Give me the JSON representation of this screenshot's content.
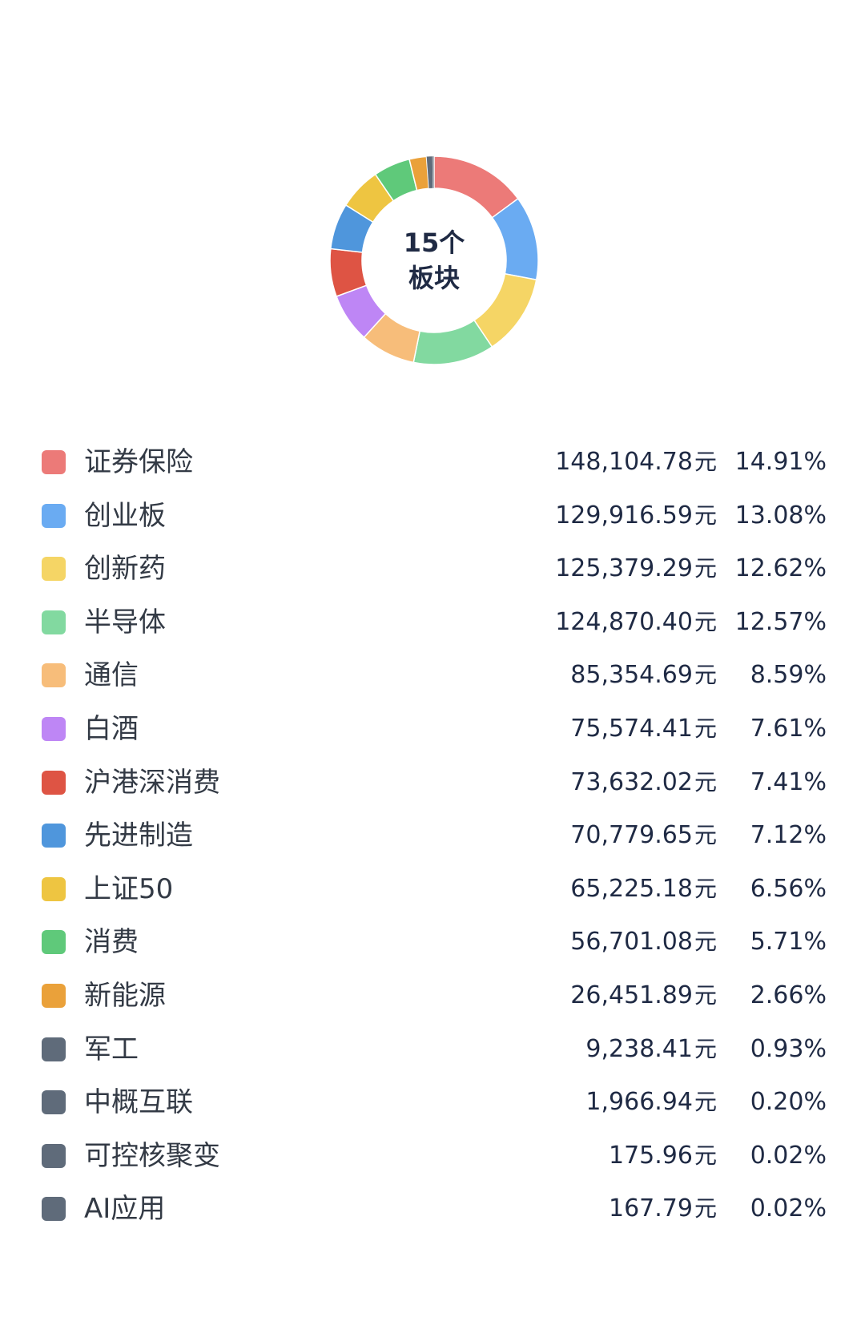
{
  "center": {
    "line1": "15个",
    "line2": "板块"
  },
  "currency_suffix": "元",
  "chart_data": {
    "type": "pie",
    "donut": true,
    "legend_position": "bottom",
    "slices": [
      {
        "label": "证券保险",
        "amount": "148,104.78",
        "percent": "14.91%",
        "value": 14.91,
        "color": "#ec7a78"
      },
      {
        "label": "创业板",
        "amount": "129,916.59",
        "percent": "13.08%",
        "value": 13.08,
        "color": "#6aabf2"
      },
      {
        "label": "创新药",
        "amount": "125,379.29",
        "percent": "12.62%",
        "value": 12.62,
        "color": "#f5d565"
      },
      {
        "label": "半导体",
        "amount": "124,870.40",
        "percent": "12.57%",
        "value": 12.57,
        "color": "#82d9a0"
      },
      {
        "label": "通信",
        "amount": "85,354.69",
        "percent": "8.59%",
        "value": 8.59,
        "color": "#f7bd7a"
      },
      {
        "label": "白酒",
        "amount": "75,574.41",
        "percent": "7.61%",
        "value": 7.61,
        "color": "#be86f5"
      },
      {
        "label": "沪港深消费",
        "amount": "73,632.02",
        "percent": "7.41%",
        "value": 7.41,
        "color": "#de5444"
      },
      {
        "label": "先进制造",
        "amount": "70,779.65",
        "percent": "7.12%",
        "value": 7.12,
        "color": "#4f96dc"
      },
      {
        "label": "上证50",
        "amount": "65,225.18",
        "percent": "6.56%",
        "value": 6.56,
        "color": "#eec541"
      },
      {
        "label": "消费",
        "amount": "56,701.08",
        "percent": "5.71%",
        "value": 5.71,
        "color": "#5fc97a"
      },
      {
        "label": "新能源",
        "amount": "26,451.89",
        "percent": "2.66%",
        "value": 2.66,
        "color": "#eaa13a"
      },
      {
        "label": "军工",
        "amount": "9,238.41",
        "percent": "0.93%",
        "value": 0.93,
        "color": "#5f6b7a"
      },
      {
        "label": "中概互联",
        "amount": "1,966.94",
        "percent": "0.20%",
        "value": 0.2,
        "color": "#5f6b7a"
      },
      {
        "label": "可控核聚变",
        "amount": "175.96",
        "percent": "0.02%",
        "value": 0.02,
        "color": "#5f6b7a"
      },
      {
        "label": "AI应用",
        "amount": "167.79",
        "percent": "0.02%",
        "value": 0.02,
        "color": "#5f6b7a"
      }
    ]
  }
}
